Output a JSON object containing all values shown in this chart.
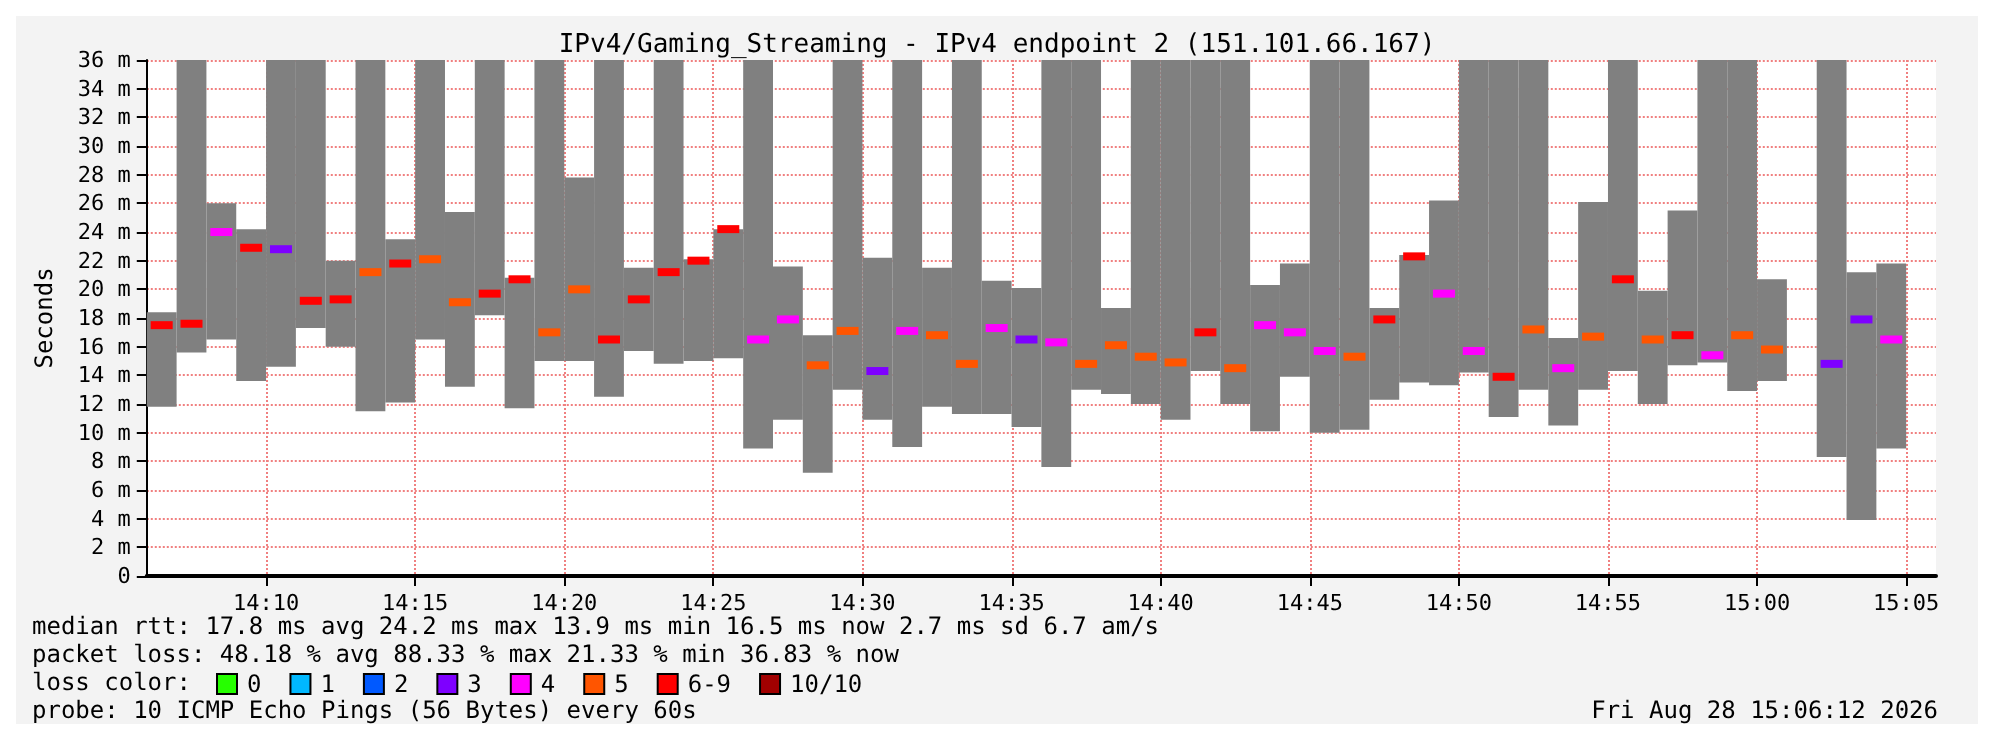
{
  "chart_data": {
    "type": "bar",
    "title": "IPv4/Gaming_Streaming - IPv4 endpoint 2 (151.101.66.167)",
    "ylabel": "Seconds",
    "x": [
      "2026-08-28T14:06:30",
      "2026-08-28T14:07:30",
      "2026-08-28T14:08:30",
      "2026-08-28T14:09:30",
      "2026-08-28T14:10:30",
      "2026-08-28T14:11:30",
      "2026-08-28T14:12:30",
      "2026-08-28T14:13:30",
      "2026-08-28T14:14:30",
      "2026-08-28T14:15:30",
      "2026-08-28T14:16:30",
      "2026-08-28T14:17:30",
      "2026-08-28T14:18:30",
      "2026-08-28T14:19:30",
      "2026-08-28T14:20:30",
      "2026-08-28T14:21:30",
      "2026-08-28T14:22:30",
      "2026-08-28T14:23:30",
      "2026-08-28T14:24:30",
      "2026-08-28T14:25:30",
      "2026-08-28T14:26:30",
      "2026-08-28T14:27:30",
      "2026-08-28T14:28:30",
      "2026-08-28T14:29:30",
      "2026-08-28T14:30:30",
      "2026-08-28T14:31:30",
      "2026-08-28T14:32:30",
      "2026-08-28T14:33:30",
      "2026-08-28T14:34:30",
      "2026-08-28T14:35:30",
      "2026-08-28T14:36:30",
      "2026-08-28T14:37:30",
      "2026-08-28T14:38:30",
      "2026-08-28T14:39:30",
      "2026-08-28T14:40:30",
      "2026-08-28T14:41:30",
      "2026-08-28T14:42:30",
      "2026-08-28T14:43:30",
      "2026-08-28T14:44:30",
      "2026-08-28T14:45:30",
      "2026-08-28T14:46:30",
      "2026-08-28T14:47:30",
      "2026-08-28T14:48:30",
      "2026-08-28T14:49:30",
      "2026-08-28T14:50:30",
      "2026-08-28T14:51:30",
      "2026-08-28T14:52:30",
      "2026-08-28T14:53:30",
      "2026-08-28T14:54:30",
      "2026-08-28T14:55:30",
      "2026-08-28T14:56:30",
      "2026-08-28T14:57:30",
      "2026-08-28T14:58:30",
      "2026-08-28T14:59:30",
      "2026-08-28T15:00:30",
      "2026-08-28T15:01:30",
      "2026-08-28T15:02:30",
      "2026-08-28T15:03:30",
      "2026-08-28T15:04:30"
    ],
    "xlim": [
      "2026-08-28T14:06",
      "2026-08-28T15:06"
    ],
    "xticks": [
      {
        "value": "2026-08-28T14:10",
        "label": "14:10"
      },
      {
        "value": "2026-08-28T14:15",
        "label": "14:15"
      },
      {
        "value": "2026-08-28T14:20",
        "label": "14:20"
      },
      {
        "value": "2026-08-28T14:25",
        "label": "14:25"
      },
      {
        "value": "2026-08-28T14:30",
        "label": "14:30"
      },
      {
        "value": "2026-08-28T14:35",
        "label": "14:35"
      },
      {
        "value": "2026-08-28T14:40",
        "label": "14:40"
      },
      {
        "value": "2026-08-28T14:45",
        "label": "14:45"
      },
      {
        "value": "2026-08-28T14:50",
        "label": "14:50"
      },
      {
        "value": "2026-08-28T14:55",
        "label": "14:55"
      },
      {
        "value": "2026-08-28T15:00",
        "label": "15:00"
      },
      {
        "value": "2026-08-28T15:05",
        "label": "15:05"
      }
    ],
    "ylim": [
      0,
      36
    ],
    "yticks": [
      0,
      {
        "value": 2,
        "label": "2 m"
      },
      {
        "value": 4,
        "label": "4 m"
      },
      {
        "value": 6,
        "label": "6 m"
      },
      {
        "value": 8,
        "label": "8 m"
      },
      {
        "value": 10,
        "label": "10 m"
      },
      {
        "value": 12,
        "label": "12 m"
      },
      {
        "value": 14,
        "label": "14 m"
      },
      {
        "value": 16,
        "label": "16 m"
      },
      {
        "value": 18,
        "label": "18 m"
      },
      {
        "value": 20,
        "label": "20 m"
      },
      {
        "value": 22,
        "label": "22 m"
      },
      {
        "value": 24,
        "label": "24 m"
      },
      {
        "value": 26,
        "label": "26 m"
      },
      {
        "value": 28,
        "label": "28 m"
      },
      {
        "value": 30,
        "label": "30 m"
      },
      {
        "value": 32,
        "label": "32 m"
      },
      {
        "value": 34,
        "label": "34 m"
      },
      {
        "value": 36,
        "label": "36 m"
      }
    ],
    "grid": true,
    "legend": "bottom",
    "legend_title": "loss color:",
    "series": [
      {
        "color": "#808080",
        "base": [
          11.8,
          15.6,
          16.5,
          13.6,
          14.6,
          17.3,
          16.0,
          11.5,
          12.1,
          16.5,
          13.2,
          18.2,
          11.7,
          15.0,
          15.0,
          12.5,
          15.7,
          14.8,
          15.0,
          15.2,
          8.9,
          10.9,
          7.2,
          13.0,
          10.9,
          9.0,
          11.8,
          11.3,
          11.3,
          10.4,
          7.6,
          13.0,
          12.7,
          12.0,
          10.9,
          14.3,
          12.0,
          10.1,
          13.9,
          10.0,
          10.2,
          12.3,
          13.5,
          13.3,
          14.2,
          11.1,
          13.0,
          10.5,
          13.0,
          14.3,
          12.0,
          14.7,
          14.9,
          12.9,
          13.6,
          null,
          8.3,
          3.9,
          8.9
        ],
        "values": [
          6.6,
          20.4,
          9.5,
          10.6,
          21.4,
          18.7,
          6.0,
          24.5,
          11.4,
          19.5,
          12.2,
          17.8,
          9.1,
          21.0,
          12.8,
          23.5,
          5.8,
          21.2,
          7.1,
          9.0,
          27.1,
          10.7,
          9.6,
          23.0,
          11.3,
          27.0,
          9.7,
          24.7,
          9.3,
          9.7,
          28.4,
          23.0,
          6.0,
          24.0,
          25.1,
          21.7,
          24.0,
          10.2,
          7.9,
          26.0,
          25.8,
          6.4,
          8.9,
          12.9,
          21.8,
          24.9,
          23.0,
          6.1,
          13.1,
          21.7,
          7.9,
          10.8,
          21.1,
          23.1,
          7.1,
          null,
          27.7,
          17.3,
          12.9
        ]
      },
      {
        "type": "scatter",
        "name": "0",
        "color": "#26ff00",
        "values": [
          null,
          null,
          null,
          null,
          null,
          null,
          null,
          null,
          null,
          null,
          null,
          null,
          null,
          null,
          null,
          null,
          null,
          null,
          null,
          null,
          null,
          null,
          null,
          null,
          null,
          null,
          null,
          null,
          null,
          null,
          null,
          null,
          null,
          null,
          null,
          null,
          null,
          null,
          null,
          null,
          null,
          null,
          null,
          null,
          null,
          null,
          null,
          null,
          null,
          null,
          null,
          null,
          null,
          null,
          null,
          null,
          null,
          null,
          null
        ]
      },
      {
        "type": "scatter",
        "name": "1",
        "color": "#00b8ff",
        "values": [
          null,
          null,
          null,
          null,
          null,
          null,
          null,
          null,
          null,
          null,
          null,
          null,
          null,
          null,
          null,
          null,
          null,
          null,
          null,
          null,
          null,
          null,
          null,
          null,
          null,
          null,
          null,
          null,
          null,
          null,
          null,
          null,
          null,
          null,
          null,
          null,
          null,
          null,
          null,
          null,
          null,
          null,
          null,
          null,
          null,
          null,
          null,
          null,
          null,
          null,
          null,
          null,
          null,
          null,
          null,
          null,
          null,
          null,
          null
        ]
      },
      {
        "type": "scatter",
        "name": "2",
        "color": "#0059ff",
        "values": [
          null,
          null,
          null,
          null,
          null,
          null,
          null,
          null,
          null,
          null,
          null,
          null,
          null,
          null,
          null,
          null,
          null,
          null,
          null,
          null,
          null,
          null,
          null,
          null,
          null,
          null,
          null,
          null,
          null,
          null,
          null,
          null,
          null,
          null,
          null,
          null,
          null,
          null,
          null,
          null,
          null,
          null,
          null,
          null,
          null,
          null,
          null,
          null,
          null,
          null,
          null,
          null,
          null,
          null,
          null,
          null,
          null,
          null,
          null
        ]
      },
      {
        "type": "scatter",
        "name": "3",
        "color": "#7e00ff",
        "x": [
          "2026-08-28T14:10:30",
          "2026-08-28T14:30:30",
          "2026-08-28T14:35:30",
          "2026-08-28T15:02:30",
          "2026-08-28T15:03:30"
        ],
        "values": [
          22.8,
          14.3,
          16.5,
          14.8,
          17.9
        ]
      },
      {
        "type": "scatter",
        "name": "4",
        "color": "#ff00ff",
        "x": [
          "2026-08-28T14:08:30",
          "2026-08-28T14:26:30",
          "2026-08-28T14:27:30",
          "2026-08-28T14:31:30",
          "2026-08-28T14:34:30",
          "2026-08-28T14:36:30",
          "2026-08-28T14:43:30",
          "2026-08-28T14:44:30",
          "2026-08-28T14:45:30",
          "2026-08-28T14:49:30",
          "2026-08-28T14:50:30",
          "2026-08-28T14:53:30",
          "2026-08-28T14:58:30",
          "2026-08-28T15:04:30"
        ],
        "values": [
          24.0,
          16.5,
          17.9,
          17.1,
          17.3,
          16.3,
          17.5,
          17.0,
          15.7,
          19.7,
          15.7,
          14.5,
          15.4,
          16.5
        ]
      },
      {
        "type": "scatter",
        "name": "5",
        "color": "#ff5500",
        "x": [
          "2026-08-28T14:13:30",
          "2026-08-28T14:15:30",
          "2026-08-28T14:16:30",
          "2026-08-28T14:19:30",
          "2026-08-28T14:20:30",
          "2026-08-28T14:28:30",
          "2026-08-28T14:29:30",
          "2026-08-28T14:32:30",
          "2026-08-28T14:33:30",
          "2026-08-28T14:37:30",
          "2026-08-28T14:38:30",
          "2026-08-28T14:39:30",
          "2026-08-28T14:40:30",
          "2026-08-28T14:42:30",
          "2026-08-28T14:46:30",
          "2026-08-28T14:52:30",
          "2026-08-28T14:54:30",
          "2026-08-28T14:56:30",
          "2026-08-28T14:59:30",
          "2026-08-28T15:00:30"
        ],
        "values": [
          21.2,
          22.1,
          19.1,
          17.0,
          20.0,
          14.7,
          17.1,
          16.8,
          14.8,
          14.8,
          16.1,
          15.3,
          14.9,
          14.5,
          15.3,
          17.2,
          16.7,
          16.5,
          16.8,
          15.8
        ]
      },
      {
        "type": "scatter",
        "name": "6-9",
        "color": "#ff0000",
        "x": [
          "2026-08-28T14:06:30",
          "2026-08-28T14:07:30",
          "2026-08-28T14:09:30",
          "2026-08-28T14:11:30",
          "2026-08-28T14:12:30",
          "2026-08-28T14:14:30",
          "2026-08-28T14:17:30",
          "2026-08-28T14:18:30",
          "2026-08-28T14:21:30",
          "2026-08-28T14:22:30",
          "2026-08-28T14:23:30",
          "2026-08-28T14:24:30",
          "2026-08-28T14:25:30",
          "2026-08-28T14:41:30",
          "2026-08-28T14:47:30",
          "2026-08-28T14:48:30",
          "2026-08-28T14:51:30",
          "2026-08-28T14:55:30",
          "2026-08-28T14:57:30"
        ],
        "values": [
          17.5,
          17.6,
          22.9,
          19.2,
          19.3,
          21.8,
          19.7,
          20.7,
          16.5,
          19.3,
          21.2,
          22.0,
          24.2,
          17.0,
          17.9,
          22.3,
          13.9,
          20.7,
          16.8
        ]
      },
      {
        "type": "scatter",
        "name": "10/10",
        "color": "#a10000",
        "values": [
          null,
          null,
          null,
          null,
          null,
          null,
          null,
          null,
          null,
          null,
          null,
          null,
          null,
          null,
          null,
          null,
          null,
          null,
          null,
          null,
          null,
          null,
          null,
          null,
          null,
          null,
          null,
          null,
          null,
          null,
          null,
          null,
          null,
          null,
          null,
          null,
          null,
          null,
          null,
          null,
          null,
          null,
          null,
          null,
          null,
          null,
          null,
          null,
          null,
          null,
          null,
          null,
          null,
          null,
          null,
          null,
          null,
          null,
          null
        ]
      }
    ],
    "annotations": [
      "median rtt: 17.8 ms avg 24.2 ms max 13.9 ms min 16.5 ms now 2.7 ms sd 6.7 am/s",
      "packet loss: 48.18 % avg 88.33 % max 21.33 % min 36.83 % now",
      "probe: 10 ICMP Echo Pings (56 Bytes) every 60s",
      "Fri Aug 28 15:06:12 2026"
    ]
  }
}
